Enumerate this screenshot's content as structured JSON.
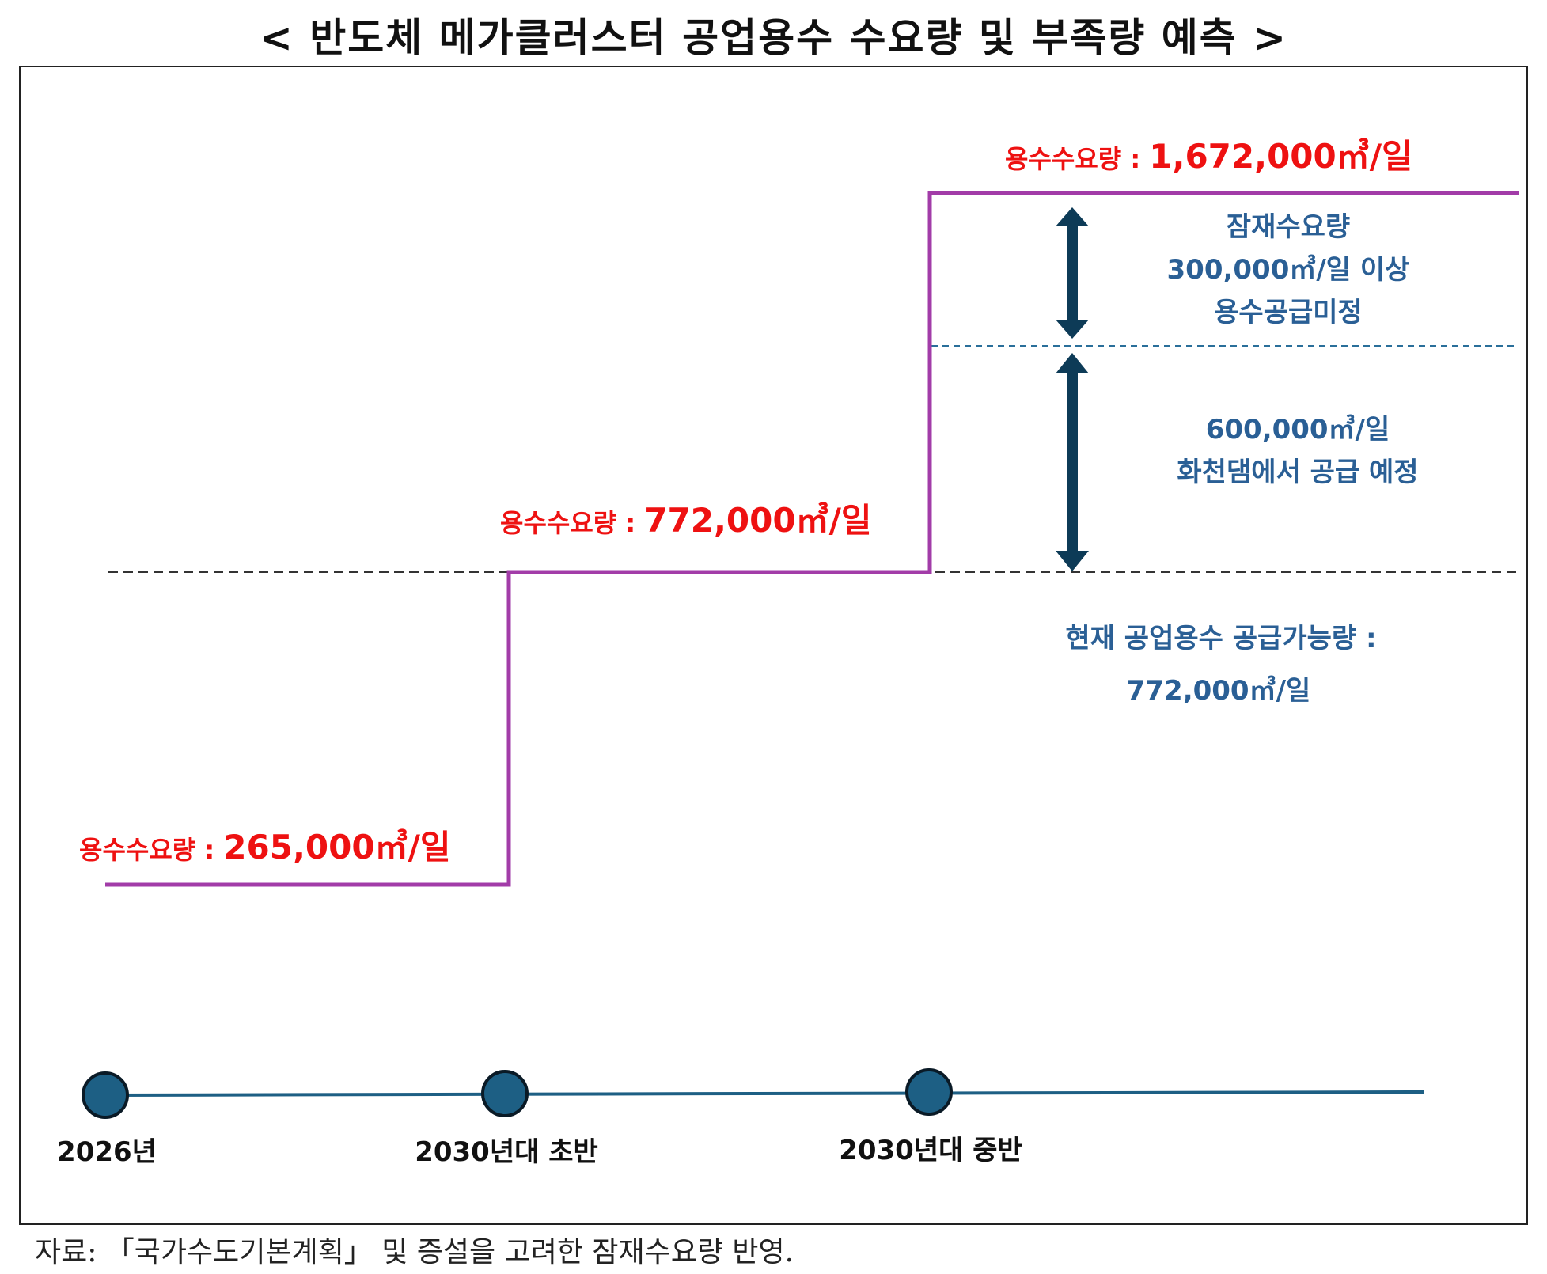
{
  "title": "< 반도체 메가클러스터 공업용수 수요량 및 부족량 예측 >",
  "demand": [
    {
      "label": "용수수요량 : ",
      "value": "265,000㎥/일"
    },
    {
      "label": "용수수요량 : ",
      "value": "772,000㎥/일"
    },
    {
      "label": "용수수요량 : ",
      "value": "1,672,000㎥/일"
    }
  ],
  "potential": {
    "line1": "잠재수요량",
    "line2": "300,000㎥/일 이상",
    "line3": "용수공급미정"
  },
  "planned": {
    "line1": "600,000㎥/일",
    "line2": "화천댐에서 공급 예정"
  },
  "current": {
    "line1": "현재 공업용수 공급가능량 :",
    "line2": "772,000㎥/일"
  },
  "timeline": [
    "2026년",
    "2030년대 초반",
    "2030년대 중반"
  ],
  "source": "자료: 「국가수도기본계획」 및 증설을 고려한 잠재수요량 반영.",
  "colors": {
    "demand_line": "#a23ca8",
    "label_red": "#ee1111",
    "label_blue": "#2a5f95",
    "arrow": "#0d3b57",
    "timeline": "#1d5f84"
  }
}
